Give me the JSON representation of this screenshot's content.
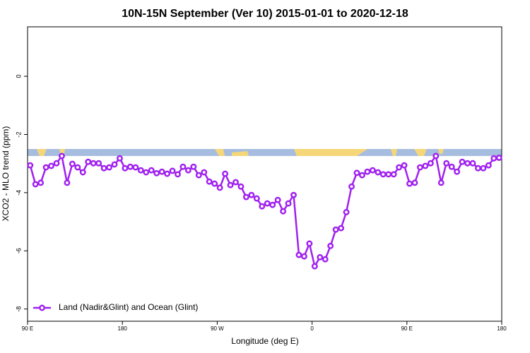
{
  "chart_data": {
    "type": "line",
    "title": "10N-15N September (Ver 10)   2015-01-01 to 2020-12-18",
    "xlabel": "Longitude (deg E)",
    "ylabel": "XCO2 - MLO trend (ppm)",
    "x": [
      92.5,
      97.5,
      102.5,
      107.5,
      112.5,
      117.5,
      122.5,
      127.5,
      132.5,
      137.5,
      142.5,
      147.5,
      152.5,
      157.5,
      162.5,
      167.5,
      172.5,
      177.5,
      182.5,
      187.5,
      192.5,
      197.5,
      202.5,
      207.5,
      212.5,
      217.5,
      222.5,
      227.5,
      232.5,
      237.5,
      242.5,
      247.5,
      252.5,
      257.5,
      262.5,
      267.5,
      272.5,
      277.5,
      282.5,
      287.5,
      292.5,
      297.5,
      302.5,
      307.5,
      312.5,
      317.5,
      322.5,
      327.5,
      332.5,
      337.5,
      342.5,
      347.5,
      352.5,
      357.5,
      362.5,
      367.5,
      372.5,
      377.5,
      382.5,
      387.5,
      392.5,
      397.5,
      402.5,
      407.5,
      412.5,
      417.5,
      422.5,
      427.5,
      432.5,
      437.5,
      442.5,
      447.5,
      452.5,
      457.5,
      462.5,
      467.5,
      472.5,
      477.5,
      482.5,
      487.5,
      492.5,
      497.5,
      502.5,
      507.5,
      512.5,
      517.5,
      522.5,
      527.5,
      532.5,
      537.5
    ],
    "series": [
      {
        "name": "Land (Nadir&Glint) and Ocean (Glint)",
        "color": "#a020f0",
        "values": [
          -3.06,
          -3.71,
          -3.66,
          -3.13,
          -3.08,
          -2.99,
          -2.74,
          -3.66,
          -3.01,
          -3.13,
          -3.3,
          -2.94,
          -2.99,
          -2.99,
          -3.16,
          -3.13,
          -3.03,
          -2.82,
          -3.16,
          -3.11,
          -3.13,
          -3.23,
          -3.3,
          -3.23,
          -3.33,
          -3.28,
          -3.35,
          -3.25,
          -3.37,
          -3.11,
          -3.23,
          -3.11,
          -3.4,
          -3.3,
          -3.62,
          -3.69,
          -3.83,
          -3.35,
          -3.74,
          -3.64,
          -3.79,
          -4.15,
          -4.08,
          -4.2,
          -4.47,
          -4.37,
          -4.42,
          -4.25,
          -4.64,
          -4.37,
          -4.08,
          -6.14,
          -6.19,
          -5.75,
          -6.53,
          -6.22,
          -6.29,
          -5.83,
          -5.27,
          -5.22,
          -4.67,
          -3.79,
          -3.32,
          -3.4,
          -3.28,
          -3.23,
          -3.3,
          -3.37,
          -3.37,
          -3.37,
          -3.13,
          -3.06,
          -3.69,
          -3.66,
          -3.13,
          -3.08,
          -2.99,
          -2.74,
          -3.66,
          -2.99,
          -3.11,
          -3.28,
          -2.94,
          -2.99,
          -2.99,
          -3.16,
          -3.16,
          -3.06,
          -2.82,
          -2.8
        ]
      }
    ],
    "xlim": [
      90,
      540
    ],
    "xticks": [
      {
        "value": 90,
        "label": "90 E"
      },
      180,
      {
        "value": 270,
        "label": "90 W"
      },
      {
        "value": 360,
        "label": "0"
      },
      {
        "value": 450,
        "label": "90 E"
      },
      {
        "value": 540,
        "label": "180"
      }
    ],
    "ylim": [
      -8.42,
      1.7
    ],
    "yticks": [
      0,
      -2,
      -4,
      -6,
      -8
    ],
    "legend": "bottom-left"
  }
}
